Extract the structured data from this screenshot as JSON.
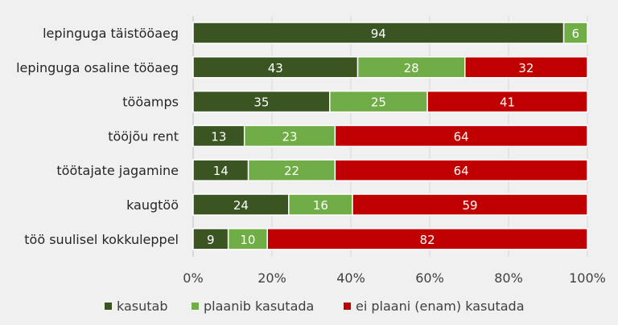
{
  "chart_data": {
    "type": "bar",
    "orientation": "horizontal",
    "stacked": "percent",
    "categories": [
      "lepinguga täistööaeg",
      "lepinguga osaline tööaeg",
      "tööamps",
      "tööjõu rent",
      "töötajate jagamine",
      "kaugtöö",
      "töö suulisel kokkuleppel"
    ],
    "series": [
      {
        "name": "kasutab",
        "color": "#3a5422",
        "values": [
          94,
          43,
          35,
          13,
          14,
          24,
          9
        ]
      },
      {
        "name": "plaanib kasutada",
        "color": "#70ad47",
        "values": [
          6,
          28,
          25,
          23,
          22,
          16,
          10
        ]
      },
      {
        "name": "ei plaani (enam) kasutada",
        "color": "#c00000",
        "values": [
          0,
          32,
          41,
          64,
          64,
          59,
          82
        ]
      }
    ],
    "xlim": [
      0,
      100
    ],
    "xticks": [
      "0%",
      "20%",
      "40%",
      "60%",
      "80%",
      "100%"
    ],
    "grid": true,
    "legend": "bottom"
  }
}
